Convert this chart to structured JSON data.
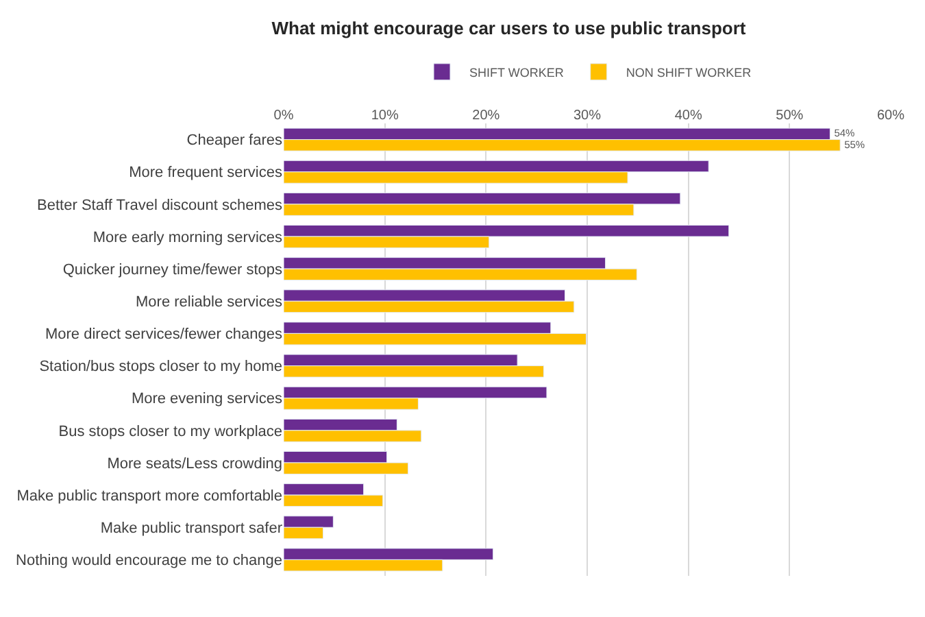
{
  "chart_data": {
    "type": "bar",
    "orientation": "horizontal",
    "title": "What might encourage car users to use public transport",
    "categories": [
      "Cheaper fares",
      "More frequent services",
      "Better Staff Travel discount schemes",
      "More early morning services",
      "Quicker journey time/fewer stops",
      "More reliable services",
      "More direct services/fewer changes",
      "Station/bus stops closer to my home",
      "More evening services",
      "Bus stops closer to my workplace",
      "More seats/Less crowding",
      "Make public transport more comfortable",
      "Make public transport safer",
      "Nothing would encourage me to change"
    ],
    "series": [
      {
        "name": "SHIFT WORKER",
        "color": "#6a2c91",
        "values": [
          54,
          42,
          39.2,
          44,
          31.8,
          27.8,
          26.4,
          23.1,
          26,
          11.2,
          10.2,
          7.9,
          4.9,
          20.7
        ],
        "value_labels": [
          "54%",
          null,
          null,
          null,
          null,
          null,
          null,
          null,
          null,
          null,
          null,
          null,
          null,
          null
        ]
      },
      {
        "name": "NON SHIFT WORKER",
        "color": "#ffc000",
        "values": [
          55,
          34,
          34.6,
          20.3,
          34.9,
          28.7,
          29.9,
          25.7,
          13.3,
          13.6,
          12.3,
          9.8,
          3.9,
          15.7
        ],
        "value_labels": [
          "55%",
          null,
          null,
          null,
          null,
          null,
          null,
          null,
          null,
          null,
          null,
          null,
          null,
          null
        ]
      }
    ],
    "xlim": [
      0,
      60
    ],
    "xticks": [
      {
        "value": 0,
        "label": "0%"
      },
      {
        "value": 10,
        "label": "10%"
      },
      {
        "value": 20,
        "label": "20%"
      },
      {
        "value": 30,
        "label": "30%"
      },
      {
        "value": 40,
        "label": "40%"
      },
      {
        "value": 50,
        "label": "50%"
      },
      {
        "value": 60,
        "label": "60%"
      }
    ],
    "grid": "x",
    "legend": "top"
  }
}
